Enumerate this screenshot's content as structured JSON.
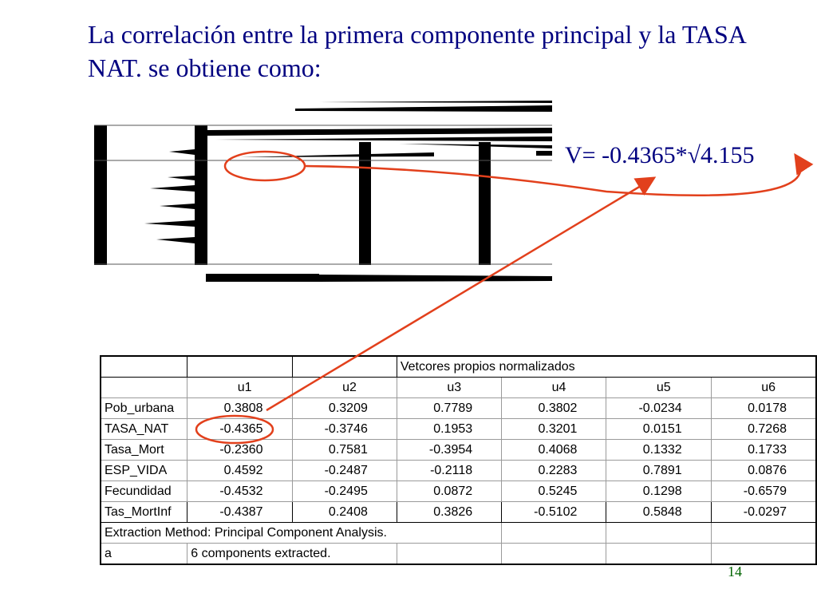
{
  "slide": {
    "title": "La correlación entre la primera componente principal y la TASA NAT. se obtiene como:",
    "formula": "V= -0.4365*√4.155",
    "page_number": "14"
  },
  "table": {
    "title": "Vetcores propios normalizados",
    "columns": [
      "u1",
      "u2",
      "u3",
      "u4",
      "u5",
      "u6"
    ],
    "rows": [
      {
        "label": "Pob_urbana",
        "values": [
          "0.3808",
          "0.3209",
          "0.7789",
          "0.3802",
          "-0.0234",
          "0.0178"
        ]
      },
      {
        "label": "TASA_NAT",
        "values": [
          "-0.4365",
          "-0.3746",
          "0.1953",
          "0.3201",
          "0.0151",
          "0.7268"
        ]
      },
      {
        "label": "Tasa_Mort",
        "values": [
          "-0.2360",
          "0.7581",
          "-0.3954",
          "0.4068",
          "0.1332",
          "0.1733"
        ]
      },
      {
        "label": "ESP_VIDA",
        "values": [
          "0.4592",
          "-0.2487",
          "-0.2118",
          "0.2283",
          "0.7891",
          "0.0876"
        ]
      },
      {
        "label": "Fecundidad",
        "values": [
          "-0.4532",
          "-0.2495",
          "0.0872",
          "0.5245",
          "0.1298",
          "-0.6579"
        ]
      },
      {
        "label": "Tas_MortInf",
        "values": [
          "-0.4387",
          "0.2408",
          "0.3826",
          "-0.5102",
          "0.5848",
          "-0.0297"
        ]
      }
    ],
    "footnote": "Extraction Method: Principal Component Analysis.",
    "note_label": "a",
    "note_text": "6 components extracted."
  },
  "colors": {
    "title_text": "#000080",
    "annotation": "#e2401c",
    "page_number": "#006400"
  }
}
